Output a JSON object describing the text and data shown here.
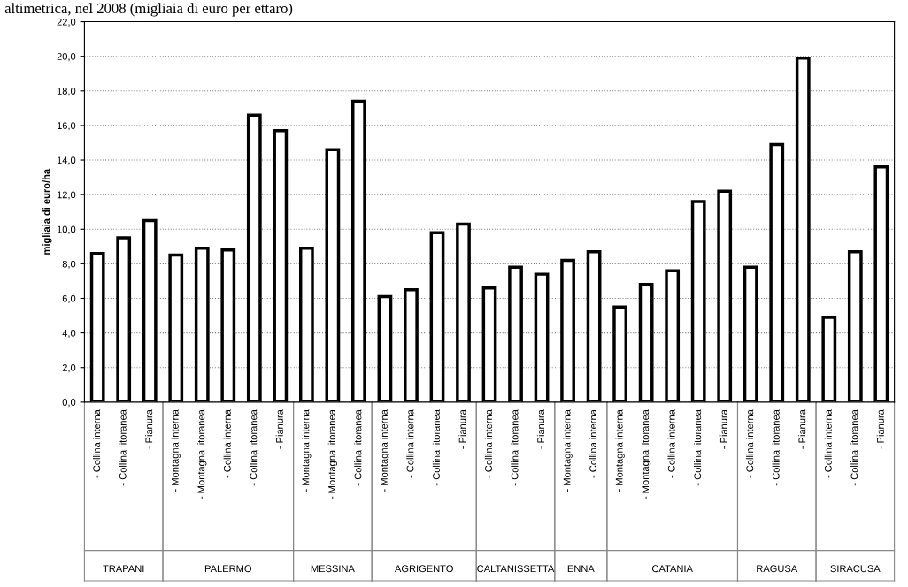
{
  "chart_data": [
    {
      "type": "bar",
      "title": "altimetrica, nel 2008 (migliaia di euro per ettaro)",
      "ylabel": "migliaia di euro/ha",
      "xlabel": "TRAPANI",
      "categories": [
        "- Collina interna",
        "- Collina litoranea",
        "- Pianura"
      ],
      "values": [
        8.6,
        9.5,
        10.5
      ],
      "color": "#ffffff",
      "ylim": [
        0,
        22
      ],
      "yticks": [
        {
          "value": 0,
          "label": "0,0"
        },
        {
          "value": 2,
          "label": "2,0"
        },
        {
          "value": 4,
          "label": "4,0"
        },
        {
          "value": 6,
          "label": "6,0"
        },
        {
          "value": 8,
          "label": "8,0"
        },
        {
          "value": 10,
          "label": "10,0"
        },
        {
          "value": 12,
          "label": "12,0"
        },
        {
          "value": 14,
          "label": "14,0"
        },
        {
          "value": 16,
          "label": "16,0"
        },
        {
          "value": 18,
          "label": "18,0"
        },
        {
          "value": 20,
          "label": "20,0"
        },
        {
          "value": 22,
          "label": "22,0"
        }
      ],
      "grid": "y"
    },
    {
      "type": "bar",
      "xlabel": "PALERMO",
      "categories": [
        "- Montagna interna",
        "- Montagna litoranea",
        "- Collina interna",
        "- Collina litoranea",
        "- Pianura"
      ],
      "values": [
        8.5,
        8.9,
        8.8,
        16.6,
        15.7
      ],
      "color": "#ffffff",
      "ylim": [
        0,
        22
      ],
      "tick_labels": "x",
      "grid": "y"
    },
    {
      "type": "bar",
      "xlabel": "MESSINA",
      "categories": [
        "- Montagna interna",
        "- Montagna litoranea",
        "- Collina litoranea"
      ],
      "values": [
        8.9,
        14.6,
        17.4
      ],
      "color": "#ffffff",
      "ylim": [
        0,
        22
      ],
      "tick_labels": "x",
      "grid": "y"
    },
    {
      "type": "bar",
      "xlabel": "AGRIGENTO",
      "categories": [
        "- Montagna interna",
        "- Collina interna",
        "- Collina litoranea",
        "- Pianura"
      ],
      "values": [
        6.1,
        6.5,
        9.8,
        10.3
      ],
      "color": "#ffffff",
      "ylim": [
        0,
        22
      ],
      "tick_labels": "x",
      "grid": "y"
    },
    {
      "type": "bar",
      "xlabel": "CALTANISSETTA",
      "categories": [
        "- Collina interna",
        "- Collina litoranea",
        "- Pianura"
      ],
      "values": [
        6.6,
        7.8,
        7.4
      ],
      "color": "#ffffff",
      "ylim": [
        0,
        22
      ],
      "tick_labels": "x",
      "grid": "y"
    },
    {
      "type": "bar",
      "xlabel": "ENNA",
      "categories": [
        "- Montagna interna",
        "- Collina interna"
      ],
      "values": [
        8.2,
        8.7
      ],
      "color": "#ffffff",
      "ylim": [
        0,
        22
      ],
      "tick_labels": "x",
      "grid": "y"
    },
    {
      "type": "bar",
      "xlabel": "CATANIA",
      "categories": [
        "- Montagna interna",
        "- Montagna litoranea",
        "- Collina interna",
        "- Collina litoranea",
        "- Pianura"
      ],
      "values": [
        5.5,
        6.8,
        7.6,
        11.6,
        12.2
      ],
      "color": "#ffffff",
      "ylim": [
        0,
        22
      ],
      "tick_labels": "x",
      "grid": "y"
    },
    {
      "type": "bar",
      "xlabel": "RAGUSA",
      "categories": [
        "- Collina interna",
        "- Collina litoranea",
        "- Pianura"
      ],
      "values": [
        7.8,
        14.9,
        19.9
      ],
      "color": "#ffffff",
      "ylim": [
        0,
        22
      ],
      "tick_labels": "x",
      "grid": "y"
    },
    {
      "type": "bar",
      "xlabel": "SIRACUSA",
      "categories": [
        "- Collina interna",
        "- Collina litoranea",
        "- Pianura"
      ],
      "values": [
        4.9,
        8.7,
        13.6
      ],
      "color": "#ffffff",
      "ylim": [
        0,
        22
      ],
      "tick_labels": "x",
      "grid": "y"
    }
  ]
}
